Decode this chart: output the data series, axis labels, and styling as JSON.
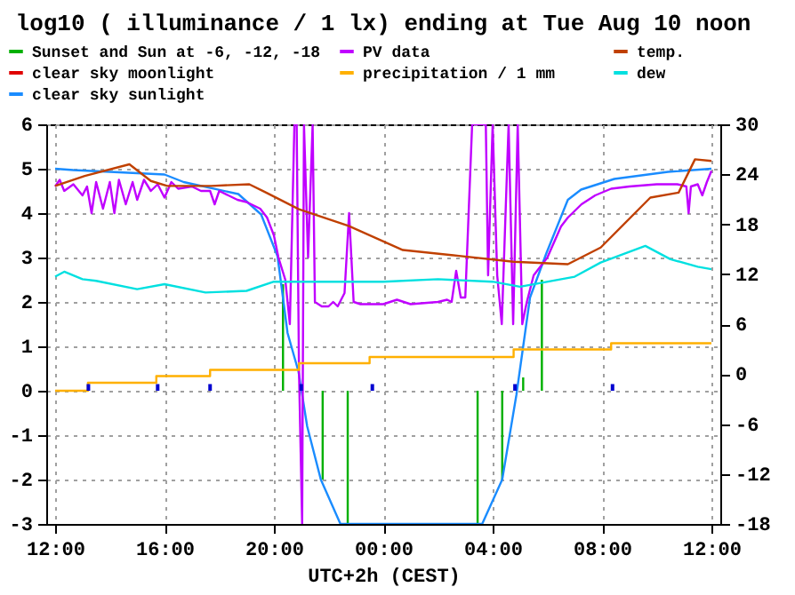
{
  "chart_data": {
    "type": "line",
    "title": "log10 ( illuminance / 1 lx) ending at Tue Aug 10 noon",
    "xlabel": "UTC+2h (CEST)",
    "xlim": [
      "--08-09T12:00",
      "--08-10T12:00"
    ],
    "xticks": [
      {
        "value": "--08-09T12:00",
        "label": "12:00"
      },
      {
        "value": "--08-09T16:00",
        "label": "16:00"
      },
      {
        "value": "--08-09T20:00",
        "label": "20:00"
      },
      {
        "value": "--08-10T00:00",
        "label": "00:00"
      },
      {
        "value": "--08-10T04:00",
        "label": "04:00"
      },
      {
        "value": "--08-10T08:00",
        "label": "08:00"
      },
      {
        "value": "--08-10T12:00",
        "label": "12:00"
      }
    ],
    "ylim": [
      -3,
      6
    ],
    "yticks": [
      -3,
      -2,
      -1,
      0,
      1,
      2,
      3,
      4,
      5,
      6
    ],
    "y2lim": [
      -18,
      30
    ],
    "y2ticks": [
      -18,
      -12,
      -6,
      0,
      6,
      12,
      18,
      24,
      30
    ],
    "grid": true,
    "legend": "top",
    "series": [
      {
        "name": "Sunset and Sun at -6, -12, -18",
        "color": "#00b000",
        "x": [
          "--08-09T20:20",
          "--08-09T20:20",
          null,
          "--08-09T21:47",
          "--08-09T21:47",
          null,
          "--08-09T22:42",
          "--08-09T22:42",
          null,
          "--08-10T03:27",
          "--08-10T03:27",
          null,
          "--08-10T04:21",
          "--08-10T04:21",
          null,
          "--08-10T05:07",
          "--08-10T05:07",
          null,
          "--08-10T05:48",
          "--08-10T05:48"
        ],
        "values": [
          0,
          2.4,
          null,
          0,
          -2,
          null,
          0,
          -3,
          null,
          0,
          -3,
          null,
          0,
          -2,
          null,
          0,
          0.3,
          null,
          0,
          2.5
        ]
      },
      {
        "name": "clear sky moonlight",
        "color": "#e00000"
      },
      {
        "name": "clear sky sunlight",
        "color": "#1a8cff",
        "x": [
          "--08-09T12:00",
          "--08-09T12:40",
          "--08-09T16:00",
          "--08-09T16:42",
          "--08-09T18:42",
          "--08-09T19:32",
          "--08-09T20:08",
          "--08-09T20:30",
          "--08-09T20:54",
          "--08-09T21:13",
          "--08-09T21:43",
          "--08-09T22:26",
          "--08-10T03:37",
          "--08-10T04:21",
          "--08-10T04:52",
          "--08-10T05:22",
          "--08-10T05:58",
          "--08-10T06:45",
          "--08-10T07:14",
          "--08-10T08:27",
          "--08-10T10:25",
          "--08-10T12:00"
        ],
        "values": [
          5.0,
          4.97,
          4.87,
          4.7,
          4.43,
          3.97,
          3.03,
          1.3,
          0.43,
          -0.8,
          -2.0,
          -3,
          -3,
          -2,
          -0.1,
          2.1,
          3.1,
          4.3,
          4.53,
          4.77,
          4.93,
          5.0
        ]
      },
      {
        "name": "PV data",
        "color": "#c000ff",
        "x": [
          "--08-09T12:00",
          "--08-09T12:10",
          "--08-09T12:20",
          "--08-09T12:40",
          "--08-09T13:00",
          "--08-09T13:10",
          "--08-09T13:20",
          "--08-09T13:30",
          "--08-09T13:45",
          "--08-09T14:00",
          "--08-09T14:10",
          "--08-09T14:20",
          "--08-09T14:35",
          "--08-09T14:50",
          "--08-09T15:00",
          "--08-09T15:15",
          "--08-09T15:30",
          "--08-09T15:45",
          "--08-09T16:00",
          "--08-09T16:15",
          "--08-09T16:30",
          "--08-09T17:00",
          "--08-09T17:20",
          "--08-09T17:40",
          "--08-09T17:50",
          "--08-09T18:00",
          "--08-09T18:20",
          "--08-09T18:40",
          "--08-09T19:00",
          "--08-09T19:30",
          "--08-09T19:45",
          "--08-09T20:00",
          "--08-09T20:10",
          "--08-09T20:25",
          "--08-09T20:35",
          "--08-09T20:45",
          "--08-09T20:50",
          "--08-09T20:55",
          "--08-09T21:02",
          "--08-09T21:06",
          "--08-09T21:15",
          "--08-09T21:25",
          "--08-09T21:30",
          "--08-09T21:45",
          "--08-09T22:00",
          "--08-09T22:10",
          "--08-09T22:20",
          "--08-09T22:35",
          "--08-09T22:45",
          "--08-09T22:55",
          "--08-09T23:10",
          "--08-10T00:00",
          "--08-10T00:30",
          "--08-10T01:00",
          "--08-10T02:00",
          "--08-10T02:20",
          "--08-10T02:30",
          "--08-10T02:40",
          "--08-10T02:50",
          "--08-10T03:00",
          "--08-10T03:15",
          "--08-10T03:45",
          "--08-10T03:50",
          "--08-10T04:00",
          "--08-10T04:10",
          "--08-10T04:20",
          "--08-10T04:35",
          "--08-10T04:45",
          "--08-10T04:55",
          "--08-10T05:05",
          "--08-10T05:15",
          "--08-10T05:30",
          "--08-10T05:45",
          "--08-10T06:00",
          "--08-10T06:30",
          "--08-10T06:45",
          "--08-10T07:15",
          "--08-10T07:45",
          "--08-10T08:20",
          "--08-10T09:00",
          "--08-10T10:00",
          "--08-10T10:45",
          "--08-10T11:05",
          "--08-10T11:10",
          "--08-10T11:15",
          "--08-10T11:30",
          "--08-10T11:40",
          "--08-10T11:50",
          "--08-10T12:00"
        ],
        "values": [
          4.6,
          4.75,
          4.5,
          4.65,
          4.4,
          4.6,
          4.0,
          4.7,
          4.1,
          4.7,
          4.0,
          4.75,
          4.2,
          4.7,
          4.3,
          4.75,
          4.5,
          4.65,
          4.35,
          4.7,
          4.55,
          4.6,
          4.5,
          4.5,
          4.2,
          4.5,
          4.4,
          4.3,
          4.25,
          4.1,
          3.9,
          3.5,
          3.0,
          2.5,
          1.5,
          6,
          6,
          0.5,
          -3,
          6,
          3.0,
          6,
          2.0,
          1.9,
          1.9,
          2.0,
          1.9,
          2.2,
          4.0,
          2.0,
          1.95,
          1.95,
          2.05,
          1.95,
          2.0,
          2.05,
          2.0,
          2.7,
          2.1,
          2.1,
          6,
          6,
          2.6,
          6,
          2.6,
          1.5,
          6,
          1.5,
          6,
          1.5,
          2.0,
          2.6,
          2.8,
          3.0,
          3.7,
          3.9,
          4.2,
          4.4,
          4.55,
          4.6,
          4.65,
          4.65,
          4.6,
          4.0,
          4.6,
          4.65,
          4.4,
          4.7,
          4.95
        ]
      },
      {
        "name": "precipitation / 1 mm",
        "type": "step",
        "color": "#ffb000",
        "x": [
          "--08-09T12:00",
          "--08-09T13:12",
          "--08-09T15:42",
          "--08-09T17:40",
          "--08-09T20:55",
          "--08-09T23:30",
          "--08-10T04:46",
          "--08-10T08:20",
          "--08-10T12:00"
        ],
        "values": [
          0,
          0.18,
          0.33,
          0.47,
          0.62,
          0.76,
          0.93,
          1.07,
          1.07
        ]
      },
      {
        "type": "bar",
        "color": "#0000d0",
        "x": [
          "--08-09T13:13",
          "--08-09T15:45",
          "--08-09T17:40",
          "--08-09T21:00",
          "--08-09T23:36",
          "--08-10T04:49",
          "--08-10T08:23"
        ],
        "values": [
          0.15,
          0.15,
          0.15,
          0.15,
          0.15,
          0.15,
          0.15
        ]
      },
      {
        "name": "temp.",
        "axis": "y2",
        "color": "#c04000",
        "x": [
          "--08-09T12:00",
          "--08-09T13:05",
          "--08-09T14:43",
          "--08-09T15:30",
          "--08-09T16:06",
          "--08-09T17:43",
          "--08-09T19:06",
          "--08-09T19:43",
          "--08-09T20:55",
          "--08-09T22:44",
          "--08-10T00:43",
          "--08-10T02:46",
          "--08-10T04:46",
          "--08-10T06:45",
          "--08-10T07:57",
          "--08-10T09:46",
          "--08-10T10:48",
          "--08-10T11:24",
          "--08-10T12:00"
        ],
        "values": [
          22.6,
          23.8,
          25.2,
          23.2,
          22.6,
          22.6,
          22.8,
          21.8,
          19.8,
          17.8,
          14.9,
          14.2,
          13.5,
          13.2,
          15.2,
          21.2,
          21.8,
          25.8,
          25.6
        ]
      },
      {
        "name": "dew",
        "axis": "y2",
        "color": "#00e0e0",
        "x": [
          "--08-09T12:00",
          "--08-09T12:20",
          "--08-09T13:00",
          "--08-09T13:30",
          "--08-09T15:00",
          "--08-09T16:00",
          "--08-09T17:30",
          "--08-09T19:00",
          "--08-09T20:00",
          "--08-10T00:00",
          "--08-10T02:00",
          "--08-10T04:00",
          "--08-10T05:00",
          "--08-10T07:00",
          "--08-10T07:57",
          "--08-10T09:35",
          "--08-10T10:30",
          "--08-10T11:30",
          "--08-10T12:00"
        ],
        "values": [
          11.7,
          12.3,
          11.4,
          11.2,
          10.2,
          10.8,
          9.8,
          10.0,
          11.1,
          11.1,
          11.4,
          11.1,
          10.5,
          11.7,
          13.4,
          15.4,
          13.8,
          12.9,
          12.6
        ]
      }
    ]
  }
}
